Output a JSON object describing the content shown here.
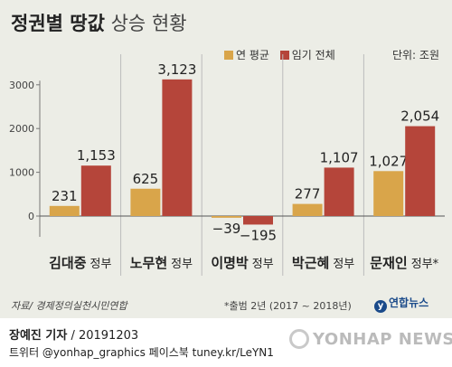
{
  "header": {
    "title_bold": "정권별 땅값",
    "title_light": "상승 현황",
    "legend": [
      {
        "label": "연 평균",
        "color": "#d9a54a"
      },
      {
        "label": "임기 전체",
        "color": "#b5453a"
      }
    ],
    "unit": "단위: 조원"
  },
  "chart_data": {
    "type": "bar",
    "categories": [
      {
        "name": "김대중",
        "suffix": "정부"
      },
      {
        "name": "노무현",
        "suffix": "정부"
      },
      {
        "name": "이명박",
        "suffix": "정부"
      },
      {
        "name": "박근혜",
        "suffix": "정부"
      },
      {
        "name": "문재인",
        "suffix": "정부*"
      }
    ],
    "series": [
      {
        "name": "연 평균",
        "color": "#d9a54a",
        "values": [
          231,
          625,
          -39,
          277,
          1027
        ],
        "labels": [
          "231",
          "625",
          "−39",
          "277",
          "1,027"
        ]
      },
      {
        "name": "임기 전체",
        "color": "#b5453a",
        "values": [
          1153,
          3123,
          -195,
          1107,
          2054
        ],
        "labels": [
          "1,153",
          "3,123",
          "−195",
          "1,107",
          "2,054"
        ]
      }
    ],
    "yticks": [
      0,
      1000,
      2000,
      3000
    ],
    "ytick_labels": [
      "0",
      "1000",
      "2000",
      "3000"
    ],
    "ylim": [
      -300,
      3300
    ],
    "grid": false
  },
  "footer": {
    "source": "자료/ 경제정의실천시민연합",
    "note": "*출범 2년 (2017 ~ 2018년)",
    "logo": "연합뉴스",
    "byline_name": "장예진 기자",
    "byline_date": " / 20191203",
    "social": "트위터 @yonhap_graphics  페이스북 tuney.kr/LeYN1",
    "watermark": "YONHAP NEWS"
  }
}
